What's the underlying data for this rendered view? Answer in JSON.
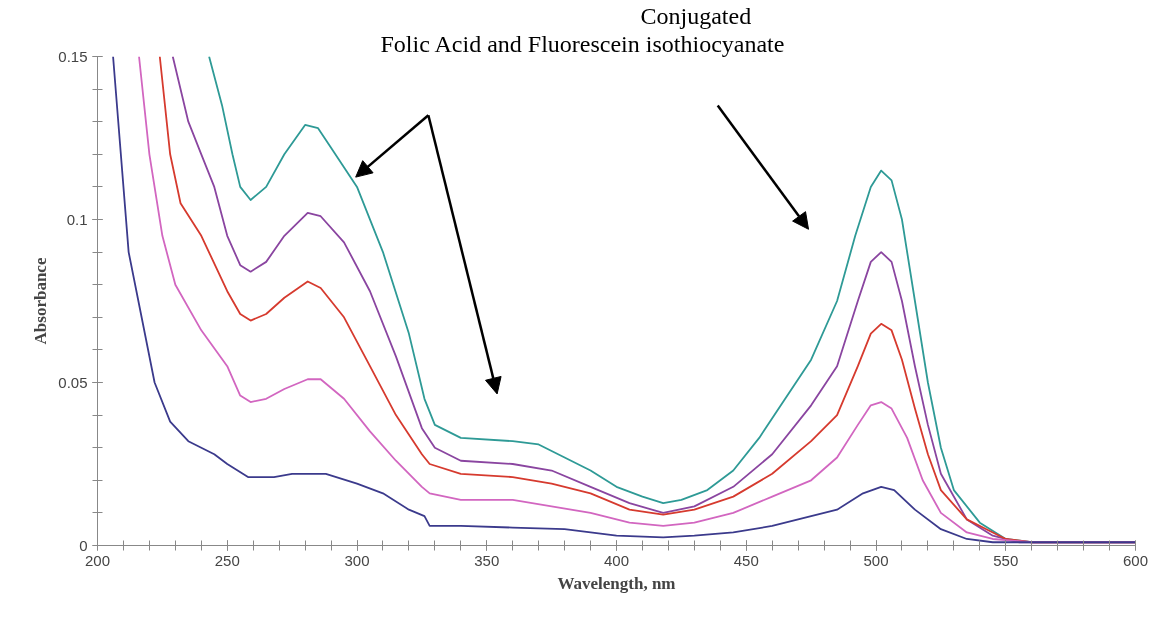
{
  "chart_data": {
    "type": "line",
    "xlabel": "Wavelength, nm",
    "ylabel": "Absorbance",
    "annotations": [
      "Conjugated",
      "Folic Acid   and   Fluorescein isothiocyanate"
    ],
    "xlim": [
      200,
      600
    ],
    "ylim": [
      0,
      0.15
    ],
    "xticks": [
      200,
      250,
      300,
      350,
      400,
      450,
      500,
      550,
      600
    ],
    "yticks": [
      0,
      0.05,
      0.1,
      0.15
    ],
    "series": [
      {
        "color": "#2e9a96",
        "x": [
          243,
          248,
          252,
          255,
          259,
          265,
          272,
          280,
          285,
          290,
          300,
          310,
          320,
          326,
          330,
          340,
          360,
          370,
          380,
          390,
          400,
          410,
          418,
          425,
          435,
          445,
          455,
          465,
          475,
          485,
          492,
          498,
          502,
          506,
          510,
          515,
          520,
          525,
          530,
          540,
          550,
          560,
          600
        ],
        "values": [
          0.15,
          0.135,
          0.12,
          0.11,
          0.106,
          0.11,
          0.12,
          0.129,
          0.128,
          0.122,
          0.11,
          0.09,
          0.065,
          0.045,
          0.037,
          0.033,
          0.032,
          0.031,
          0.027,
          0.023,
          0.018,
          0.015,
          0.013,
          0.014,
          0.017,
          0.023,
          0.033,
          0.045,
          0.057,
          0.075,
          0.095,
          0.11,
          0.115,
          0.112,
          0.1,
          0.075,
          0.05,
          0.03,
          0.017,
          0.007,
          0.002,
          0.001,
          0.001
        ]
      },
      {
        "color": "#8a45a0",
        "x": [
          229,
          235,
          240,
          245,
          250,
          255,
          259,
          265,
          272,
          281,
          286,
          295,
          305,
          315,
          325,
          330,
          340,
          360,
          375,
          390,
          405,
          418,
          430,
          445,
          460,
          475,
          485,
          493,
          498,
          502,
          506,
          510,
          515,
          520,
          525,
          535,
          545,
          555,
          600
        ],
        "values": [
          0.15,
          0.13,
          0.12,
          0.11,
          0.095,
          0.086,
          0.084,
          0.087,
          0.095,
          0.102,
          0.101,
          0.093,
          0.078,
          0.058,
          0.036,
          0.03,
          0.026,
          0.025,
          0.023,
          0.018,
          0.013,
          0.01,
          0.012,
          0.018,
          0.028,
          0.043,
          0.055,
          0.075,
          0.087,
          0.09,
          0.087,
          0.075,
          0.055,
          0.037,
          0.022,
          0.008,
          0.003,
          0.001,
          0.001
        ]
      },
      {
        "color": "#d63a2e",
        "x": [
          224,
          228,
          232,
          240,
          250,
          255,
          259,
          265,
          272,
          281,
          286,
          295,
          305,
          315,
          325,
          328,
          340,
          360,
          375,
          390,
          405,
          418,
          430,
          445,
          460,
          475,
          485,
          493,
          498,
          502,
          506,
          510,
          515,
          520,
          525,
          535,
          545,
          550,
          560,
          600
        ],
        "values": [
          0.15,
          0.12,
          0.105,
          0.095,
          0.078,
          0.071,
          0.069,
          0.071,
          0.076,
          0.081,
          0.079,
          0.07,
          0.055,
          0.04,
          0.028,
          0.025,
          0.022,
          0.021,
          0.019,
          0.016,
          0.011,
          0.0095,
          0.011,
          0.015,
          0.022,
          0.032,
          0.04,
          0.055,
          0.065,
          0.068,
          0.066,
          0.057,
          0.042,
          0.028,
          0.017,
          0.008,
          0.004,
          0.002,
          0.001,
          0.001
        ]
      },
      {
        "color": "#d266c0",
        "x": [
          216,
          220,
          225,
          230,
          240,
          250,
          255,
          259,
          265,
          272,
          281,
          286,
          295,
          305,
          315,
          325,
          328,
          340,
          360,
          375,
          390,
          405,
          418,
          430,
          445,
          460,
          475,
          485,
          493,
          498,
          502,
          506,
          512,
          518,
          525,
          535,
          545,
          560,
          600
        ],
        "values": [
          0.15,
          0.12,
          0.095,
          0.08,
          0.066,
          0.055,
          0.046,
          0.044,
          0.045,
          0.048,
          0.051,
          0.051,
          0.045,
          0.035,
          0.026,
          0.018,
          0.016,
          0.014,
          0.014,
          0.012,
          0.01,
          0.007,
          0.006,
          0.007,
          0.01,
          0.015,
          0.02,
          0.027,
          0.037,
          0.043,
          0.044,
          0.042,
          0.033,
          0.02,
          0.01,
          0.004,
          0.002,
          0.001,
          0.001
        ]
      },
      {
        "color": "#3b3a8c",
        "x": [
          206,
          208,
          212,
          217,
          222,
          228,
          235,
          245,
          250,
          258,
          268,
          275,
          288,
          300,
          310,
          320,
          326,
          328,
          340,
          360,
          380,
          390,
          400,
          418,
          430,
          445,
          460,
          475,
          485,
          495,
          502,
          507,
          515,
          525,
          535,
          545,
          600
        ],
        "values": [
          0.15,
          0.13,
          0.09,
          0.07,
          0.05,
          0.038,
          0.032,
          0.028,
          0.025,
          0.021,
          0.021,
          0.022,
          0.022,
          0.019,
          0.016,
          0.011,
          0.009,
          0.006,
          0.006,
          0.0055,
          0.005,
          0.004,
          0.003,
          0.0025,
          0.003,
          0.004,
          0.006,
          0.009,
          0.011,
          0.016,
          0.018,
          0.017,
          0.011,
          0.005,
          0.002,
          0.001,
          0.001
        ]
      }
    ]
  }
}
